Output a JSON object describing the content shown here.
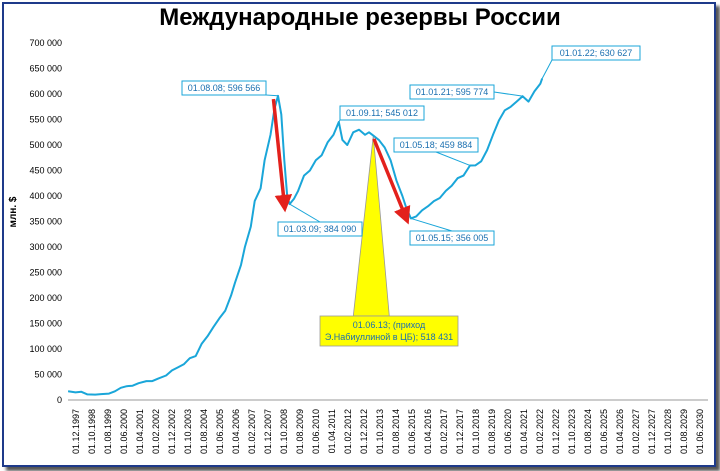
{
  "chart_data": {
    "type": "line",
    "title": "Международные резервы России",
    "ylabel": "млн. $",
    "xlabel": "",
    "ylim": [
      0,
      700000
    ],
    "y_ticks": [
      "0",
      "50 000",
      "100 000",
      "150 000",
      "200 000",
      "250 000",
      "300 000",
      "350 000",
      "400 000",
      "450 000",
      "500 000",
      "550 000",
      "600 000",
      "650 000",
      "700 000"
    ],
    "x_ticks": [
      "01.12.1997",
      "01.10.1998",
      "01.08.1999",
      "01.06.2000",
      "01.04.2001",
      "01.02.2002",
      "01.12.2002",
      "01.10.2003",
      "01.08.2004",
      "01.06.2005",
      "01.04.2006",
      "01.02.2007",
      "01.12.2007",
      "01.10.2008",
      "01.08.2009",
      "01.06.2010",
      "01.04.2011",
      "01.02.2012",
      "01.12.2012",
      "01.10.2013",
      "01.08.2014",
      "01.06.2015",
      "01.04.2016",
      "01.02.2017",
      "01.12.2017",
      "01.10.2018",
      "01.08.2019",
      "01.06.2020",
      "01.04.2021",
      "01.02.2022",
      "01.12.2022",
      "01.10.2023",
      "01.08.2024",
      "01.06.2025",
      "01.04.2026",
      "01.02.2027",
      "01.12.2027",
      "01.10.2028",
      "01.08.2029",
      "01.06.2030"
    ],
    "line_color": "#1aa6d9",
    "series": [
      {
        "x": [
          1997.92,
          1998.3,
          1998.6,
          1998.9,
          1999.3,
          1999.6,
          2000.0,
          2000.3,
          2000.6,
          2000.9,
          2001.2,
          2001.5,
          2001.9,
          2002.2,
          2002.5,
          2002.9,
          2003.2,
          2003.5,
          2003.8,
          2004.1,
          2004.4,
          2004.7,
          2005.0,
          2005.3,
          2005.6,
          2005.9,
          2006.2,
          2006.4,
          2006.7,
          2006.9,
          2007.2,
          2007.4,
          2007.7,
          2007.9,
          2008.2,
          2008.4,
          2008.58,
          2008.75,
          2008.9,
          2009.05,
          2009.17,
          2009.4,
          2009.6,
          2009.9,
          2010.2,
          2010.5,
          2010.8,
          2011.1,
          2011.4,
          2011.67,
          2011.85,
          2012.1,
          2012.4,
          2012.7,
          2013.0,
          2013.2,
          2013.42,
          2013.7,
          2014.0,
          2014.3,
          2014.6,
          2014.9,
          2015.1,
          2015.33,
          2015.6,
          2015.9,
          2016.2,
          2016.5,
          2016.8,
          2017.1,
          2017.4,
          2017.7,
          2018.0,
          2018.33,
          2018.6,
          2018.9,
          2019.2,
          2019.5,
          2019.8,
          2020.1,
          2020.4,
          2020.7,
          2021.0,
          2021.3,
          2021.6,
          2021.9,
          2022.0
        ],
        "y": [
          17000,
          15000,
          16000,
          11000,
          10500,
          11500,
          12500,
          17000,
          24000,
          27000,
          28000,
          33000,
          37000,
          37000,
          42000,
          48000,
          58000,
          64000,
          70000,
          82000,
          86000,
          110000,
          125000,
          143000,
          160000,
          175000,
          205000,
          230000,
          265000,
          300000,
          340000,
          390000,
          415000,
          470000,
          520000,
          570000,
          596566,
          560000,
          470000,
          400000,
          384090,
          395000,
          410000,
          440000,
          450000,
          470000,
          480000,
          505000,
          520000,
          545012,
          510000,
          500000,
          525000,
          530000,
          520000,
          525000,
          518431,
          510000,
          495000,
          470000,
          430000,
          400000,
          376000,
          356005,
          360000,
          372000,
          380000,
          390000,
          396000,
          410000,
          420000,
          435000,
          440000,
          459884,
          460000,
          468000,
          490000,
          520000,
          548000,
          568000,
          575000,
          585000,
          595774,
          585000,
          605000,
          620000,
          630627
        ]
      }
    ],
    "callouts": [
      {
        "label": "01.08.08; 596 566"
      },
      {
        "label": "01.03.09; 384 090"
      },
      {
        "label": "01.09.11; 545 012"
      },
      {
        "label": "01.06.13; (приход Э.Набиуллиной в ЦБ); 518 431"
      },
      {
        "label": "01.05.15; 356 005"
      },
      {
        "label": "01.05.18; 459 884"
      },
      {
        "label": "01.01.21; 595 774"
      },
      {
        "label": "01.01.22; 630 627"
      }
    ],
    "callout_line1": "01.06.13; (приход",
    "callout_line2": "Э.Набиуллиной в ЦБ); 518 431",
    "arrow_color": "#e3211c",
    "highlight_color": "#ffff00",
    "grid": false,
    "legend": "none"
  }
}
